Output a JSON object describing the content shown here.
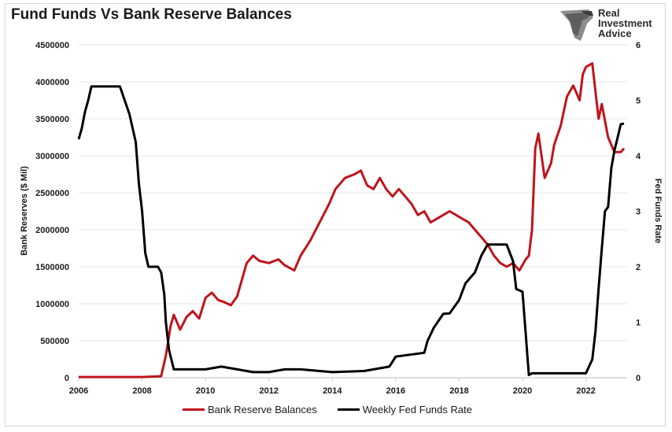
{
  "title": "Fund Funds Vs Bank Reserve Balances",
  "brand": {
    "line1": "Real",
    "line2": "Investment",
    "line3": "Advice"
  },
  "chart_data": {
    "type": "line",
    "title": "Fund Funds Vs Bank Reserve Balances",
    "ylabel_left": "Bank Reserves ($ Mil)",
    "ylabel_right": "Fed Funds Rate",
    "x_ticks": [
      "2006",
      "2008",
      "2010",
      "2012",
      "2014",
      "2016",
      "2018",
      "2020",
      "2022"
    ],
    "y_left_ticks": [
      "0",
      "500000",
      "1000000",
      "1500000",
      "2000000",
      "2500000",
      "3000000",
      "3500000",
      "4000000",
      "4500000"
    ],
    "y_right_ticks": [
      "0",
      "1",
      "2",
      "3",
      "4",
      "5",
      "6"
    ],
    "xlim": [
      2006,
      2023.3
    ],
    "ylim_left": [
      0,
      4500000
    ],
    "ylim_right": [
      0,
      6
    ],
    "grid": true,
    "legend_position": "bottom",
    "series": [
      {
        "name": "Bank Reserve Balances",
        "axis": "left",
        "color": "#c0141c",
        "x": [
          2006,
          2007,
          2008,
          2008.6,
          2008.75,
          2008.9,
          2009.0,
          2009.2,
          2009.4,
          2009.6,
          2009.8,
          2010.0,
          2010.2,
          2010.4,
          2010.6,
          2010.8,
          2011.0,
          2011.3,
          2011.5,
          2011.7,
          2012.0,
          2012.3,
          2012.5,
          2012.8,
          2013.0,
          2013.3,
          2013.6,
          2013.9,
          2014.1,
          2014.4,
          2014.7,
          2014.9,
          2015.1,
          2015.3,
          2015.5,
          2015.7,
          2015.9,
          2016.1,
          2016.3,
          2016.5,
          2016.7,
          2016.9,
          2017.1,
          2017.3,
          2017.5,
          2017.7,
          2017.9,
          2018.1,
          2018.3,
          2018.5,
          2018.7,
          2018.9,
          2019.1,
          2019.3,
          2019.5,
          2019.7,
          2019.9,
          2020.1,
          2020.2,
          2020.3,
          2020.4,
          2020.5,
          2020.7,
          2020.9,
          2021.0,
          2021.2,
          2021.4,
          2021.6,
          2021.8,
          2021.9,
          2022.0,
          2022.2,
          2022.4,
          2022.5,
          2022.7,
          2022.9,
          2023.1,
          2023.2
        ],
        "values": [
          10000,
          10000,
          10000,
          20000,
          300000,
          700000,
          850000,
          650000,
          820000,
          900000,
          800000,
          1080000,
          1150000,
          1050000,
          1020000,
          980000,
          1100000,
          1550000,
          1650000,
          1580000,
          1550000,
          1600000,
          1520000,
          1450000,
          1650000,
          1850000,
          2100000,
          2350000,
          2550000,
          2700000,
          2750000,
          2800000,
          2600000,
          2550000,
          2700000,
          2550000,
          2450000,
          2550000,
          2450000,
          2350000,
          2200000,
          2250000,
          2100000,
          2150000,
          2200000,
          2250000,
          2200000,
          2150000,
          2100000,
          2000000,
          1900000,
          1800000,
          1650000,
          1550000,
          1500000,
          1550000,
          1450000,
          1600000,
          1650000,
          2000000,
          3100000,
          3300000,
          2700000,
          2900000,
          3150000,
          3400000,
          3800000,
          3950000,
          3750000,
          4100000,
          4200000,
          4250000,
          3500000,
          3700000,
          3250000,
          3050000,
          3050000,
          3100000
        ]
      },
      {
        "name": "Weekly Fed Funds Rate",
        "axis": "right",
        "color": "#000000",
        "x": [
          2006,
          2006.1,
          2006.2,
          2006.3,
          2006.4,
          2006.5,
          2006.7,
          2007.0,
          2007.3,
          2007.6,
          2007.7,
          2007.8,
          2007.9,
          2008.0,
          2008.1,
          2008.2,
          2008.3,
          2008.4,
          2008.5,
          2008.6,
          2008.7,
          2008.75,
          2008.85,
          2009.0,
          2009.5,
          2010.0,
          2010.5,
          2011.0,
          2011.5,
          2012.0,
          2012.5,
          2013.0,
          2014.0,
          2015.0,
          2015.8,
          2016.0,
          2016.9,
          2017.0,
          2017.2,
          2017.5,
          2017.7,
          2018.0,
          2018.2,
          2018.5,
          2018.7,
          2018.9,
          2019.0,
          2019.5,
          2019.7,
          2019.8,
          2020.0,
          2020.2,
          2020.3,
          2020.5,
          2021.0,
          2021.5,
          2022.0,
          2022.2,
          2022.3,
          2022.4,
          2022.5,
          2022.6,
          2022.7,
          2022.8,
          2022.9,
          2023.0,
          2023.1,
          2023.2
        ],
        "values": [
          4.3,
          4.5,
          4.8,
          5.0,
          5.25,
          5.25,
          5.25,
          5.25,
          5.25,
          4.75,
          4.5,
          4.25,
          3.5,
          3.0,
          2.25,
          2.0,
          2.0,
          2.0,
          2.0,
          1.9,
          1.5,
          1.0,
          0.5,
          0.15,
          0.15,
          0.15,
          0.2,
          0.15,
          0.1,
          0.1,
          0.15,
          0.15,
          0.1,
          0.12,
          0.2,
          0.38,
          0.45,
          0.66,
          0.9,
          1.15,
          1.16,
          1.4,
          1.7,
          1.9,
          2.2,
          2.4,
          2.4,
          2.4,
          2.1,
          1.6,
          1.55,
          0.05,
          0.08,
          0.08,
          0.08,
          0.08,
          0.08,
          0.33,
          0.83,
          1.6,
          2.33,
          3.0,
          3.08,
          3.78,
          4.1,
          4.33,
          4.57,
          4.58
        ]
      }
    ]
  }
}
